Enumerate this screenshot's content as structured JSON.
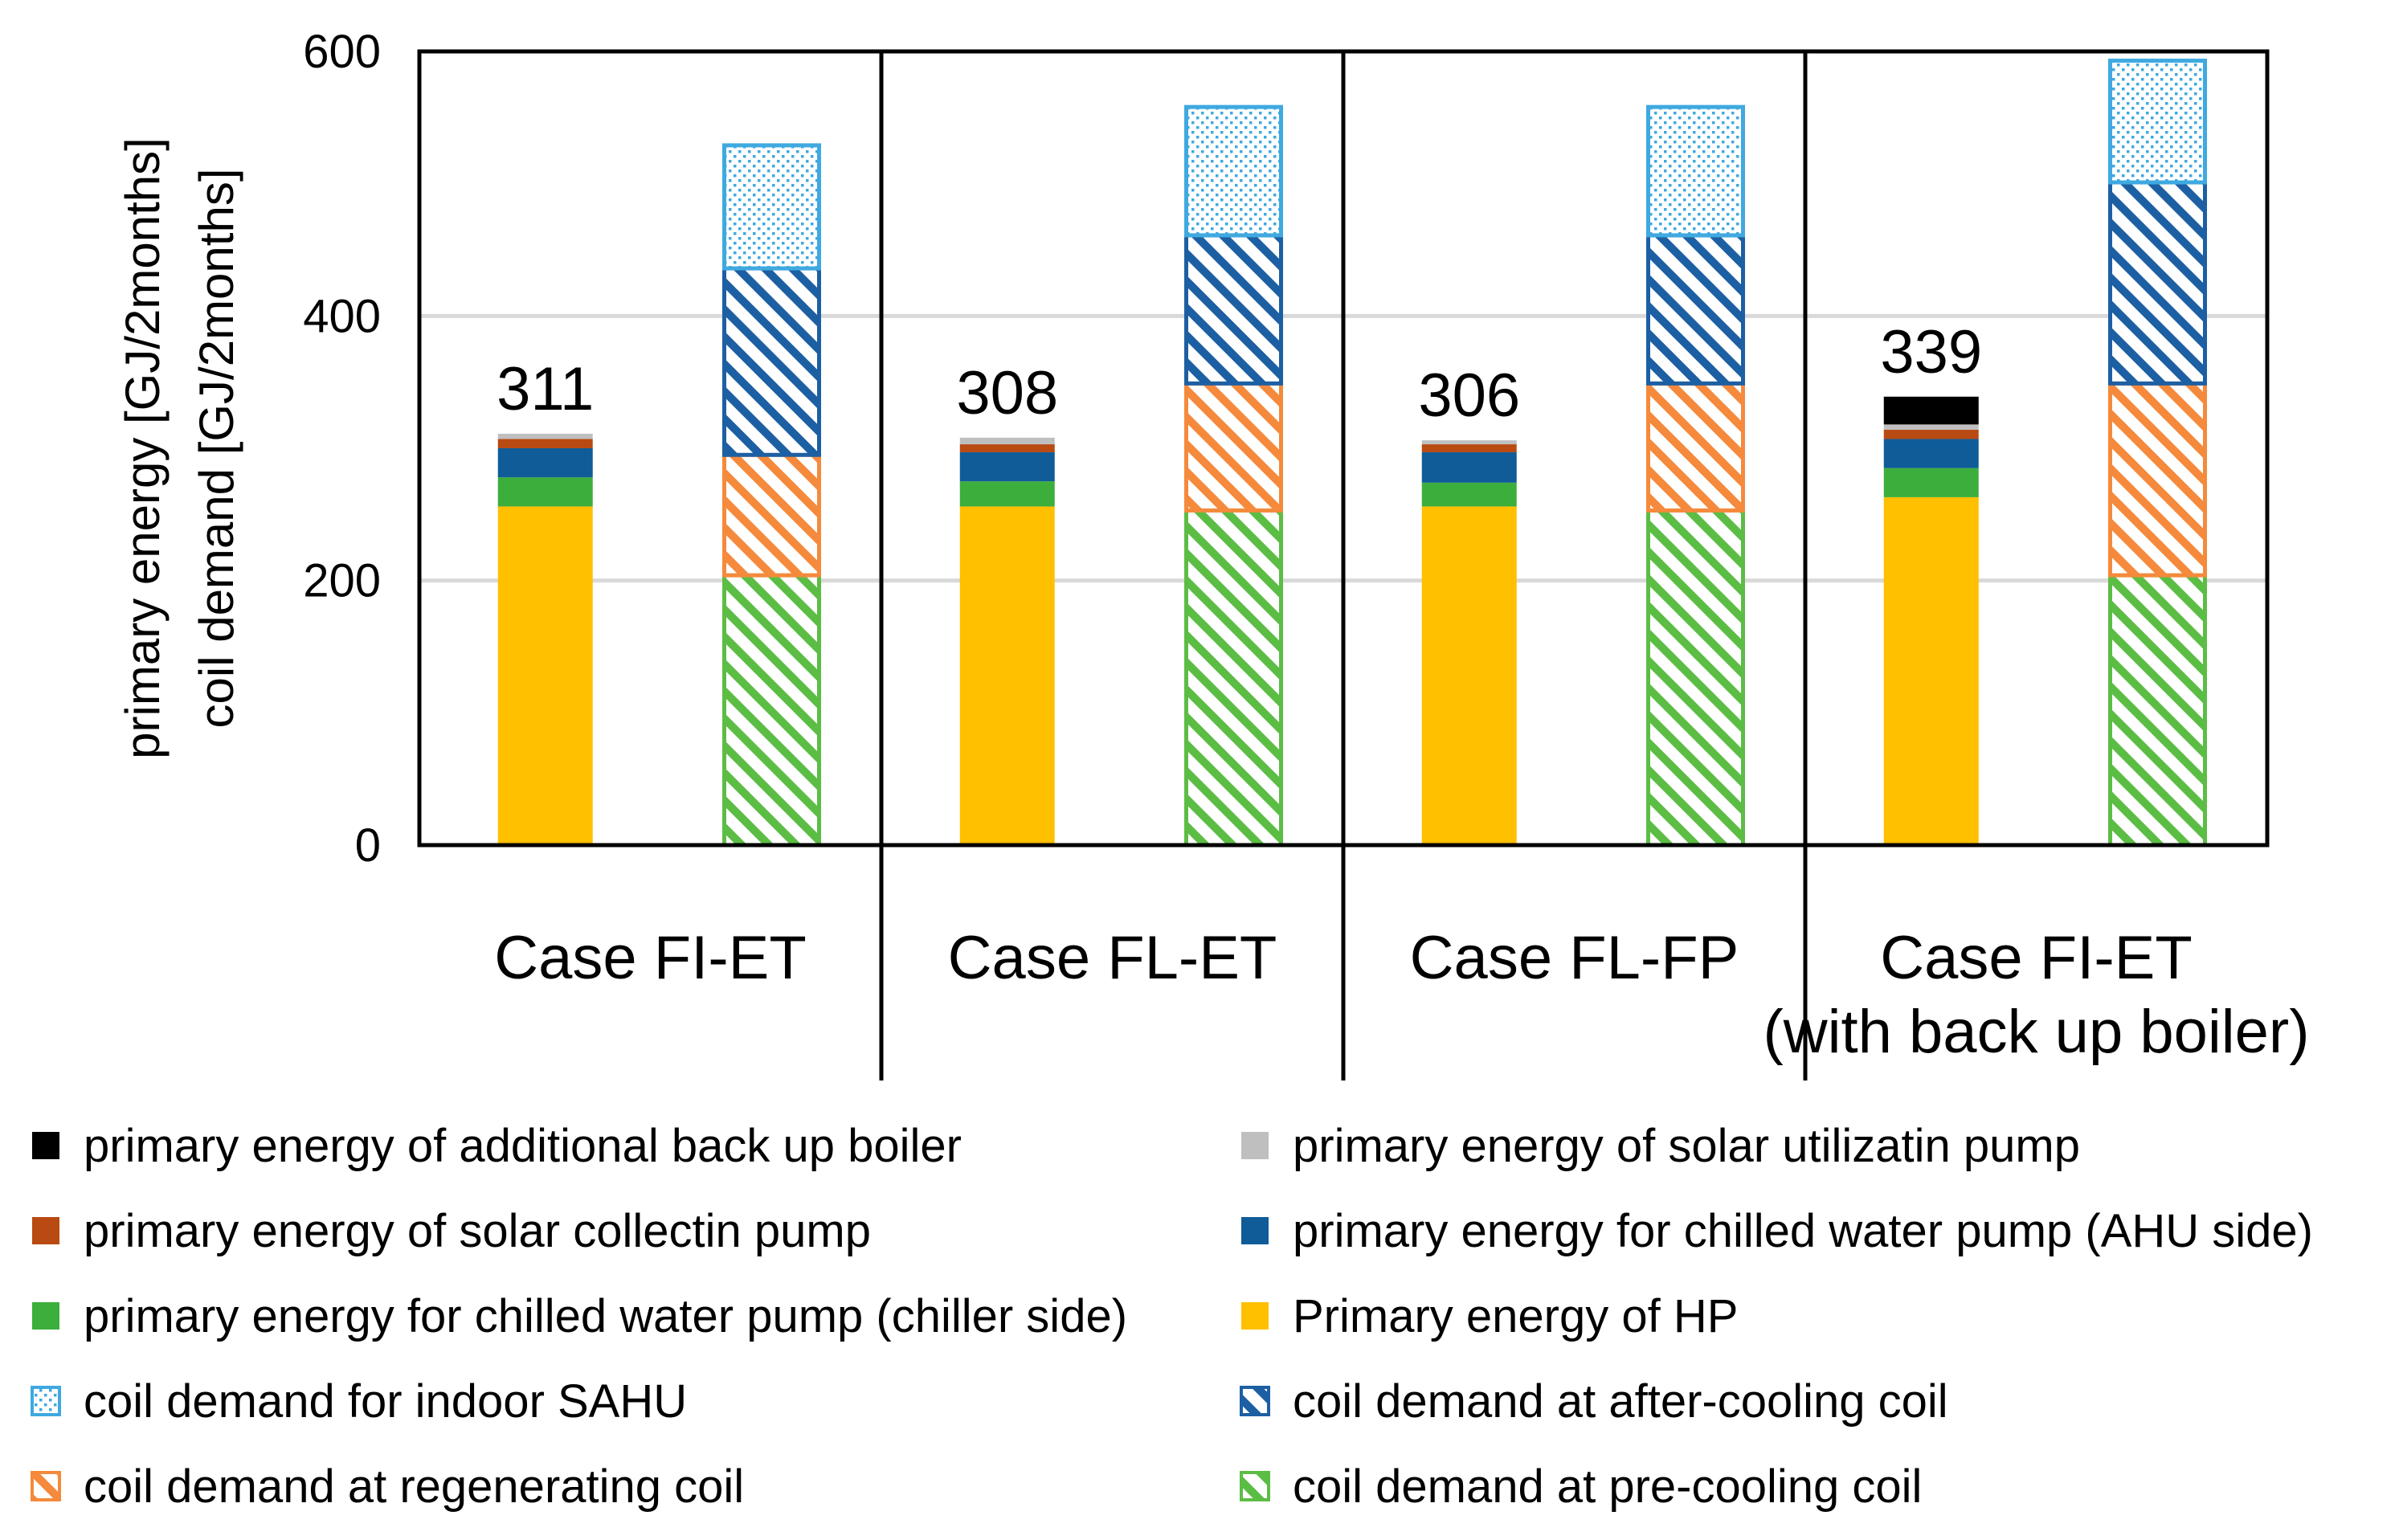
{
  "chart_data": {
    "type": "bar",
    "stacked": true,
    "ylabel_lines": [
      "primary energy  [GJ/2months]",
      "coil demand [GJ/2months]"
    ],
    "ylim": [
      0,
      600
    ],
    "yticks": [
      0,
      200,
      400,
      600
    ],
    "grid": true,
    "legend_position": "bottom",
    "categories": [
      {
        "lines": [
          "Case FI-ET"
        ]
      },
      {
        "lines": [
          "Case FL-ET"
        ]
      },
      {
        "lines": [
          "Case FL-FP"
        ]
      },
      {
        "lines": [
          "Case FI-ET",
          "(with back up boiler)"
        ]
      }
    ],
    "primary_totals": [
      "311",
      "308",
      "306",
      "339"
    ],
    "primary_series": [
      {
        "key": "hp",
        "name": "Primary energy of HP",
        "color": "#ffc000",
        "values": [
          256,
          256,
          256,
          263
        ]
      },
      {
        "key": "pump_chiller",
        "name": "primary energy for chilled water pump (chiller side)",
        "color": "#3cae3c",
        "values": [
          22,
          19,
          18,
          22
        ]
      },
      {
        "key": "pump_ahu",
        "name": "primary energy for chilled water pump (AHU side)",
        "color": "#0f5c99",
        "values": [
          22,
          22,
          23,
          22
        ]
      },
      {
        "key": "collect_pump",
        "name": "primary energy of solar collectin pump",
        "color": "#b84a12",
        "values": [
          7,
          6,
          6,
          7
        ]
      },
      {
        "key": "util_pump",
        "name": "primary energy of solar utilizatin pump",
        "color": "#bfbfbf",
        "values": [
          4,
          5,
          3,
          4
        ]
      },
      {
        "key": "boiler",
        "name": "primary energy of additional back up boiler",
        "color": "#000000",
        "values": [
          0,
          0,
          0,
          21
        ]
      }
    ],
    "coil_series": [
      {
        "key": "pre",
        "name": "coil demand at pre-cooling coil",
        "color": "#5cbd45",
        "pattern": "hatch",
        "values": [
          204,
          253,
          253,
          204
        ]
      },
      {
        "key": "regen",
        "name": "coil demand at regenerating coil",
        "color": "#f58a3c",
        "pattern": "hatch",
        "values": [
          91,
          96,
          96,
          145
        ]
      },
      {
        "key": "after",
        "name": "coil demand at after-cooling coil",
        "color": "#1d5fa3",
        "pattern": "hatch",
        "values": [
          141,
          112,
          112,
          152
        ]
      },
      {
        "key": "sahu",
        "name": "coil demand for indoor SAHU",
        "color": "#3fa9e0",
        "pattern": "dots",
        "values": [
          93,
          97,
          97,
          92
        ]
      }
    ],
    "legend_order": [
      [
        "boiler",
        "util_pump"
      ],
      [
        "collect_pump",
        "pump_ahu"
      ],
      [
        "pump_chiller",
        "hp"
      ],
      [
        "sahu",
        "after"
      ],
      [
        "regen",
        "pre"
      ]
    ]
  }
}
